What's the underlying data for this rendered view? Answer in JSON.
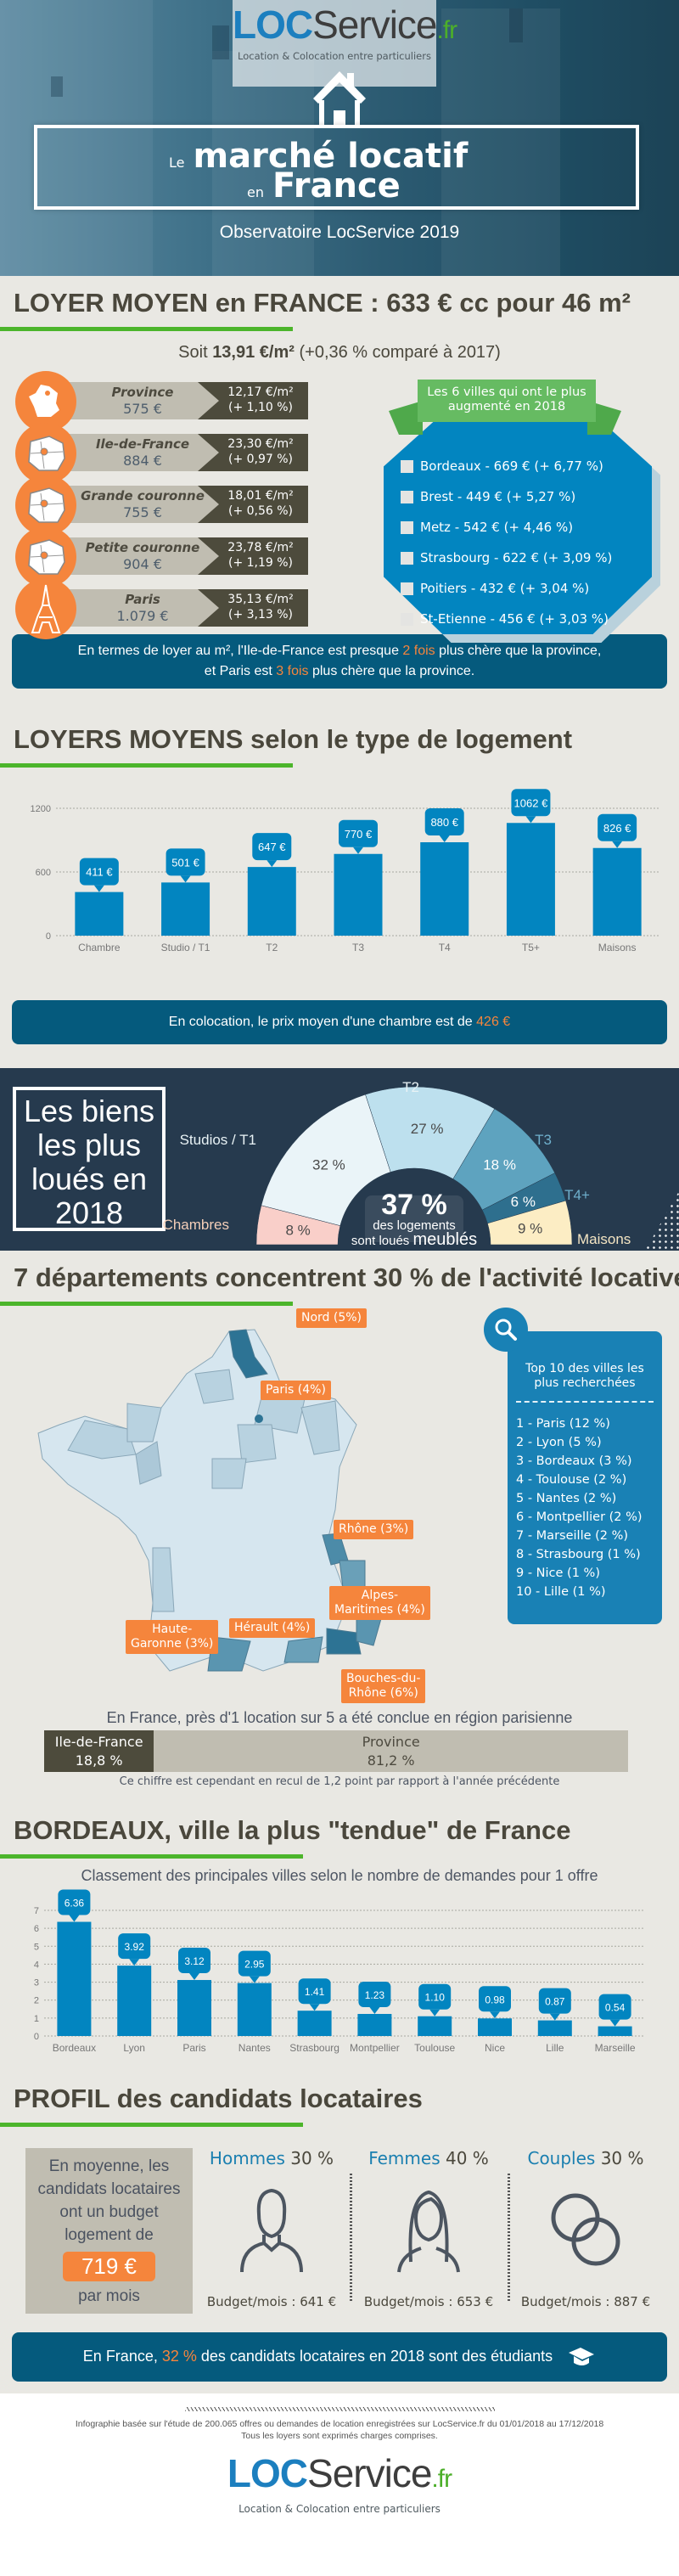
{
  "brand": {
    "loc": "LOC",
    "service": "Service",
    "tld": ".fr",
    "tagline": "Location & Colocation entre particuliers"
  },
  "hero": {
    "title_small_1": "Le",
    "title_big_1": "marché locatif",
    "title_small_2": "en",
    "title_big_2": "France",
    "subtitle": "Observatoire LocService 2019"
  },
  "loyer": {
    "heading_pre": "LOYER MOYEN en FRANCE : ",
    "heading_bold": "633 €",
    "heading_post": " cc pour 46 m²",
    "soit_pre": "Soit ",
    "soit_bold": "13,91 €/m²",
    "soit_post": " (+0,36 % comparé à 2017)",
    "regions": [
      {
        "name": "Province",
        "rent": "575 €",
        "per_m2": "12,17 €/m²",
        "change": "(+ 1,10 %)",
        "icon": "france-map-icon"
      },
      {
        "name": "Ile-de-France",
        "rent": "884 €",
        "per_m2": "23,30 €/m²",
        "change": "(+ 0,97 %)",
        "icon": "idf-map-icon"
      },
      {
        "name": "Grande couronne",
        "rent": "755 €",
        "per_m2": "18,01 €/m²",
        "change": "(+ 0,56 %)",
        "icon": "idf-map-icon"
      },
      {
        "name": "Petite couronne",
        "rent": "904 €",
        "per_m2": "23,78 €/m²",
        "change": "(+ 1,19 %)",
        "icon": "idf-map-icon"
      },
      {
        "name": "Paris",
        "rent": "1.079 €",
        "per_m2": "35,13 €/m²",
        "change": "(+ 3,13 %)",
        "icon": "eiffel-tower-icon"
      }
    ],
    "cities_ribbon": "Les 6 villes qui ont le plus augmenté en 2018",
    "cities": [
      "Bordeaux - 669 € (+ 6,77 %)",
      "Brest - 449 € (+ 5,27 %)",
      "Metz - 542 € (+ 4,46 %)",
      "Strasbourg - 622 € (+ 3,09 %)",
      "Poitiers - 432 € (+ 3,04 %)",
      "St-Etienne - 456 € (+ 3,03 %)"
    ],
    "banner_1": "En termes de loyer au m², l'Ile-de-France est presque ",
    "banner_hl1": "2 fois",
    "banner_2": " plus chère que la province,",
    "banner_3": "et Paris est ",
    "banner_hl2": "3 fois",
    "banner_4": " plus chère que la province."
  },
  "types": {
    "heading": "LOYERS MOYENS selon le type de logement",
    "banner_pre": "En colocation, le prix moyen d'une chambre est de ",
    "banner_hl": "426 €"
  },
  "biens": {
    "box_title": "Les biens les plus loués en 2018",
    "center_big": "37 %",
    "center_line1": "des logements",
    "center_line2_pre": "sont loués ",
    "center_line2_big": "meublés"
  },
  "departements": {
    "heading_pre": "7 départements concentrent ",
    "heading_bold": "30 %",
    "heading_post": " de l'activité locative",
    "tags": {
      "nord": "Nord (5%)",
      "paris": "Paris (4%)",
      "rhone": "Rhône (3%)",
      "alpes_1": "Alpes-",
      "alpes_2": "Maritimes (4%)",
      "haute_1": "Haute-",
      "haute_2": "Garonne (3%)",
      "herault": "Hérault (4%)",
      "bouches_1": "Bouches-du-",
      "bouches_2": "Rhône (6%)"
    },
    "top10_title": "Top 10 des villes les plus recherchées",
    "top10": [
      "1 - Paris (12 %)",
      "2 - Lyon (5 %)",
      "3 - Bordeaux (3 %)",
      "4 - Toulouse (2 %)",
      "5 - Nantes (2 %)",
      "6 - Montpellier (2 %)",
      "7 - Marseille (2 %)",
      "8 - Strasbourg (1 %)",
      "9 - Nice (1 %)",
      "10 - Lille (1 %)"
    ],
    "idf_title": "En France, près d'1 location sur 5 a été conclue en région parisienne",
    "idf_label": "Ile-de-France",
    "idf_value": "18,8 %",
    "idf_share": 18.8,
    "province_label": "Province",
    "province_value": "81,2 %",
    "province_share": 81.2,
    "idf_note": "Ce chiffre est cependant en recul de 1,2 point par rapport à l'année précédente"
  },
  "bordeaux": {
    "heading": "BORDEAUX, ville la plus \"tendue\" de France",
    "subtitle": "Classement des principales villes selon le nombre de demandes pour 1 offre"
  },
  "profil": {
    "heading": "PROFIL des candidats locataires",
    "budget_text": "En moyenne, les candidats locataires ont un budget logement de",
    "budget_value": "719 €",
    "budget_suffix": "par mois",
    "groups": [
      {
        "label": "Hommes",
        "pct": "30 %",
        "budget": "Budget/mois : 641 €",
        "icon": "man-icon"
      },
      {
        "label": "Femmes",
        "pct": "40 %",
        "budget": "Budget/mois : 653 €",
        "icon": "woman-icon"
      },
      {
        "label": "Couples",
        "pct": "30 %",
        "budget": "Budget/mois : 887 €",
        "icon": "rings-icon"
      }
    ],
    "banner_pre": "En France, ",
    "banner_hl": "32 %",
    "banner_post": " des candidats locataires en 2018 sont des étudiants"
  },
  "footer": {
    "note_1": "Infographie basée sur l'étude de 200.065 offres ou demandes de location enregistrées sur LocService.fr du 01/01/2018 au 17/12/2018",
    "note_2": "Tous les loyers sont exprimés charges comprises."
  },
  "colors": {
    "accent_blue": "#0285c0",
    "dark_blue": "#055a7d",
    "orange": "#f5853c",
    "green": "#4cb52b",
    "navy": "#263a4e"
  },
  "chart_data": [
    {
      "type": "bar",
      "title": "LOYERS MOYENS selon le type de logement",
      "categories": [
        "Chambre",
        "Studio / T1",
        "T2",
        "T3",
        "T4",
        "T5+",
        "Maisons"
      ],
      "values": [
        411,
        501,
        647,
        770,
        880,
        1062,
        826
      ],
      "labels": [
        "411 €",
        "501 €",
        "647 €",
        "770 €",
        "880 €",
        "1062 €",
        "826 €"
      ],
      "ylim": [
        0,
        1200
      ],
      "yticks": [
        0,
        600,
        1200
      ],
      "xlabel": "",
      "ylabel": "",
      "grid": true
    },
    {
      "type": "pie",
      "subtype": "semi-donut",
      "title": "Les biens les plus loués en 2018",
      "categories": [
        "Chambres",
        "Studios / T1",
        "T2",
        "T3",
        "T4+",
        "Maisons"
      ],
      "values": [
        8,
        32,
        27,
        18,
        6,
        9
      ],
      "labels": [
        "8 %",
        "32 %",
        "27 %",
        "18 %",
        "6 %",
        "9 %"
      ],
      "colors": [
        "#f9cfc9",
        "#eaf4f8",
        "#bde0ee",
        "#5ea3bf",
        "#2e6f8e",
        "#fcedc4"
      ],
      "label_colors": [
        "#f4cfb9",
        "#e8f2f5",
        "#e8f2f5",
        "#6fb0cd",
        "#6fb0cd",
        "#f4e5c3"
      ]
    },
    {
      "type": "bar",
      "title": "Classement des principales villes selon le nombre de demandes pour 1 offre",
      "categories": [
        "Bordeaux",
        "Lyon",
        "Paris",
        "Nantes",
        "Strasbourg",
        "Montpellier",
        "Toulouse",
        "Nice",
        "Lille",
        "Marseille"
      ],
      "values": [
        6.36,
        3.92,
        3.12,
        2.95,
        1.41,
        1.23,
        1.1,
        0.98,
        0.87,
        0.54
      ],
      "labels": [
        "6.36",
        "3.92",
        "3.12",
        "2.95",
        "1.41",
        "1.23",
        "1.10",
        "0.98",
        "0.87",
        "0.54"
      ],
      "ylim": [
        0,
        7
      ],
      "yticks": [
        0,
        1,
        2,
        3,
        4,
        5,
        6,
        7
      ],
      "xlabel": "",
      "ylabel": "",
      "grid": true
    }
  ]
}
